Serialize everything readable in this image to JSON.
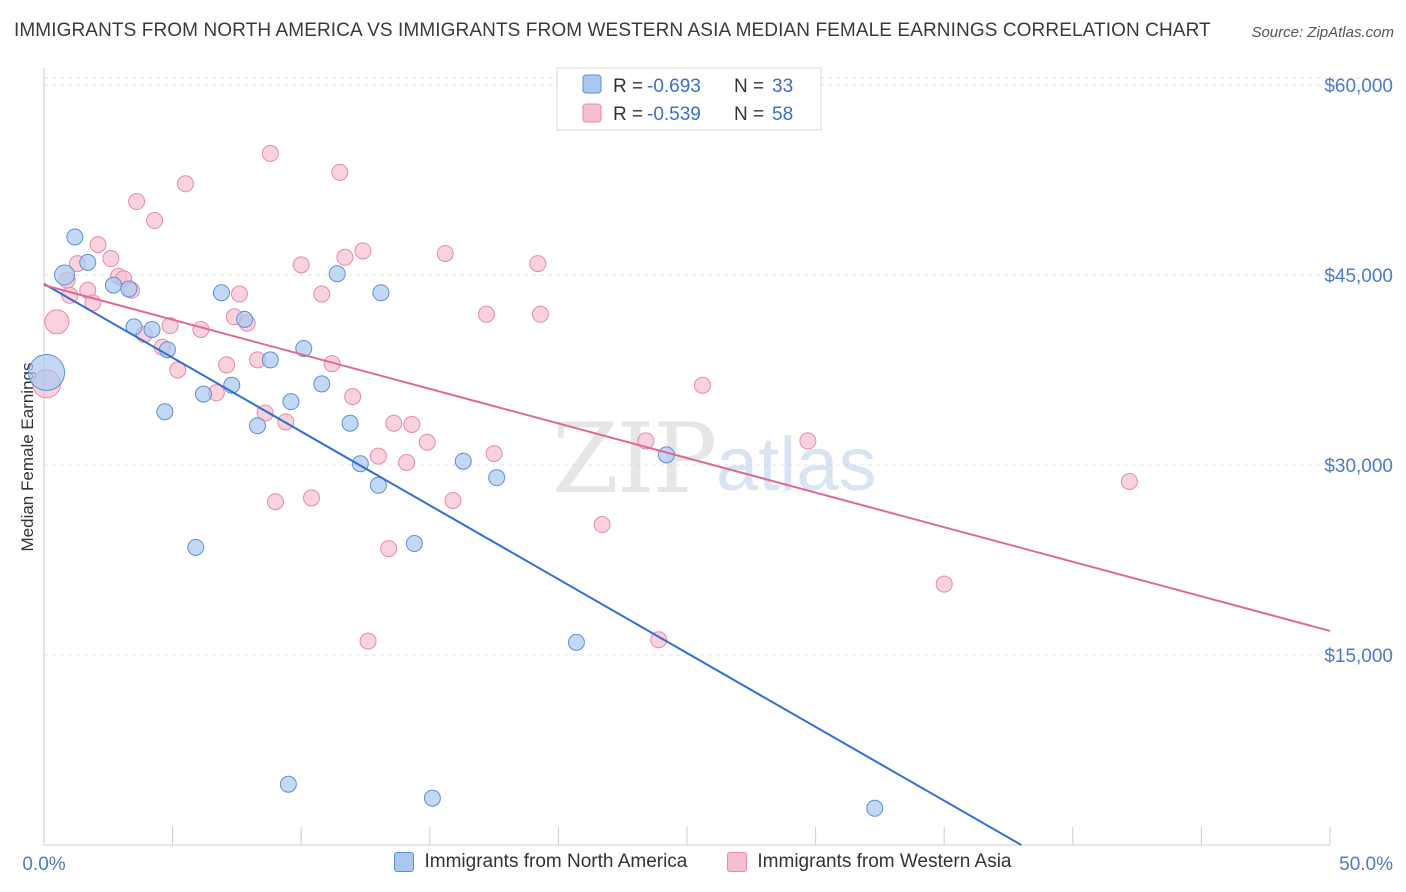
{
  "title": "IMMIGRANTS FROM NORTH AMERICA VS IMMIGRANTS FROM WESTERN ASIA MEDIAN FEMALE EARNINGS CORRELATION CHART",
  "source": "Source: ZipAtlas.com",
  "watermark": {
    "zip": "ZIP",
    "atlas": "atlas"
  },
  "colors": {
    "blue_fill": "#aac8ef",
    "blue_stroke": "#5b8fd6",
    "blue_line": "#2f6fd0",
    "pink_fill": "#f6bfd0",
    "pink_stroke": "#e889a8",
    "pink_line": "#e06a93",
    "tick_text": "#4a7cc9",
    "grid": "#dddddd"
  },
  "stats": [
    {
      "r_label": "R =",
      "r": "-0.693",
      "n_label": "N =",
      "n": "33"
    },
    {
      "r_label": "R =",
      "r": "-0.539",
      "n_label": "N =",
      "n": "58"
    }
  ],
  "chart_data": {
    "type": "scatter",
    "title": "IMMIGRANTS FROM NORTH AMERICA VS IMMIGRANTS FROM WESTERN ASIA MEDIAN FEMALE EARNINGS CORRELATION CHART",
    "xlabel": "",
    "ylabel": "Median Female Earnings",
    "xlim": [
      0,
      50
    ],
    "ylim": [
      0,
      62000
    ],
    "x_tick_labels": [
      "0.0%",
      "50.0%"
    ],
    "y_ticks": [
      15000,
      30000,
      45000,
      60000
    ],
    "y_tick_labels": [
      "$15,000",
      "$30,000",
      "$45,000",
      "$60,000"
    ],
    "grid": true,
    "legend_position": "bottom-center",
    "series": [
      {
        "name": "Immigrants from North America",
        "color": "#aac8ef",
        "trend": {
          "x": [
            0,
            38
          ],
          "y": [
            44300,
            0
          ]
        },
        "points": [
          [
            0.1,
            37300,
            18
          ],
          [
            0.8,
            45000,
            10
          ],
          [
            1.2,
            48000,
            8
          ],
          [
            1.7,
            46000,
            8
          ],
          [
            2.7,
            44200,
            8
          ],
          [
            3.3,
            43900,
            8
          ],
          [
            3.5,
            40900,
            8
          ],
          [
            4.2,
            40700,
            8
          ],
          [
            4.8,
            39100,
            8
          ],
          [
            4.7,
            34200,
            8
          ],
          [
            6.2,
            35600,
            8
          ],
          [
            6.9,
            43600,
            8
          ],
          [
            7.3,
            36300,
            8
          ],
          [
            7.8,
            41500,
            8
          ],
          [
            8.3,
            33100,
            8
          ],
          [
            8.8,
            38300,
            8
          ],
          [
            9.6,
            35000,
            8
          ],
          [
            10.1,
            39200,
            8
          ],
          [
            10.8,
            36400,
            8
          ],
          [
            11.4,
            45100,
            8
          ],
          [
            11.9,
            33300,
            8
          ],
          [
            12.3,
            30100,
            8
          ],
          [
            13.0,
            28400,
            8
          ],
          [
            14.4,
            23800,
            8
          ],
          [
            16.3,
            30300,
            8
          ],
          [
            17.6,
            29000,
            8
          ],
          [
            20.7,
            16000,
            8
          ],
          [
            24.2,
            30800,
            8
          ],
          [
            5.9,
            23500,
            8
          ],
          [
            9.5,
            4800,
            8
          ],
          [
            15.1,
            3700,
            8
          ],
          [
            32.3,
            2900,
            8
          ],
          [
            13.1,
            43600,
            8
          ]
        ]
      },
      {
        "name": "Immigrants from Western Asia",
        "color": "#f6bfd0",
        "trend": {
          "x": [
            0,
            50
          ],
          "y": [
            44200,
            16900
          ]
        },
        "points": [
          [
            0.1,
            36400,
            14
          ],
          [
            0.5,
            41300,
            12
          ],
          [
            0.9,
            44600,
            8
          ],
          [
            1.0,
            43400,
            8
          ],
          [
            1.3,
            45900,
            8
          ],
          [
            1.7,
            43800,
            8
          ],
          [
            1.9,
            42800,
            8
          ],
          [
            2.1,
            47400,
            8
          ],
          [
            2.6,
            46300,
            8
          ],
          [
            2.9,
            44900,
            8
          ],
          [
            3.1,
            44700,
            8
          ],
          [
            3.4,
            43800,
            8
          ],
          [
            3.6,
            50800,
            8
          ],
          [
            3.9,
            40300,
            8
          ],
          [
            4.3,
            49300,
            8
          ],
          [
            4.6,
            39300,
            8
          ],
          [
            4.9,
            41000,
            8
          ],
          [
            5.2,
            37500,
            8
          ],
          [
            5.5,
            52200,
            8
          ],
          [
            6.1,
            40700,
            8
          ],
          [
            6.7,
            35700,
            8
          ],
          [
            7.1,
            37900,
            8
          ],
          [
            7.4,
            41700,
            8
          ],
          [
            7.6,
            43500,
            8
          ],
          [
            7.9,
            41200,
            8
          ],
          [
            8.3,
            38300,
            8
          ],
          [
            8.6,
            34100,
            8
          ],
          [
            8.8,
            54600,
            8
          ],
          [
            9.0,
            27100,
            8
          ],
          [
            9.4,
            33400,
            8
          ],
          [
            10.0,
            45800,
            8
          ],
          [
            10.4,
            27400,
            8
          ],
          [
            10.8,
            43500,
            8
          ],
          [
            11.2,
            38000,
            8
          ],
          [
            11.5,
            53100,
            8
          ],
          [
            11.7,
            46400,
            8
          ],
          [
            12.0,
            35400,
            8
          ],
          [
            12.4,
            46900,
            8
          ],
          [
            12.6,
            16100,
            8
          ],
          [
            13.0,
            30700,
            8
          ],
          [
            13.4,
            23400,
            8
          ],
          [
            13.6,
            33300,
            8
          ],
          [
            14.1,
            30200,
            8
          ],
          [
            14.3,
            33200,
            8
          ],
          [
            14.9,
            31800,
            8
          ],
          [
            15.6,
            46700,
            8
          ],
          [
            15.9,
            27200,
            8
          ],
          [
            17.2,
            41900,
            8
          ],
          [
            17.5,
            30900,
            8
          ],
          [
            19.2,
            45900,
            8
          ],
          [
            19.3,
            41900,
            8
          ],
          [
            21.7,
            25300,
            8
          ],
          [
            23.4,
            31900,
            8
          ],
          [
            23.9,
            16200,
            8
          ],
          [
            25.6,
            36300,
            8
          ],
          [
            29.7,
            31900,
            8
          ],
          [
            35.0,
            20600,
            8
          ],
          [
            42.2,
            28700,
            8
          ]
        ]
      }
    ]
  }
}
